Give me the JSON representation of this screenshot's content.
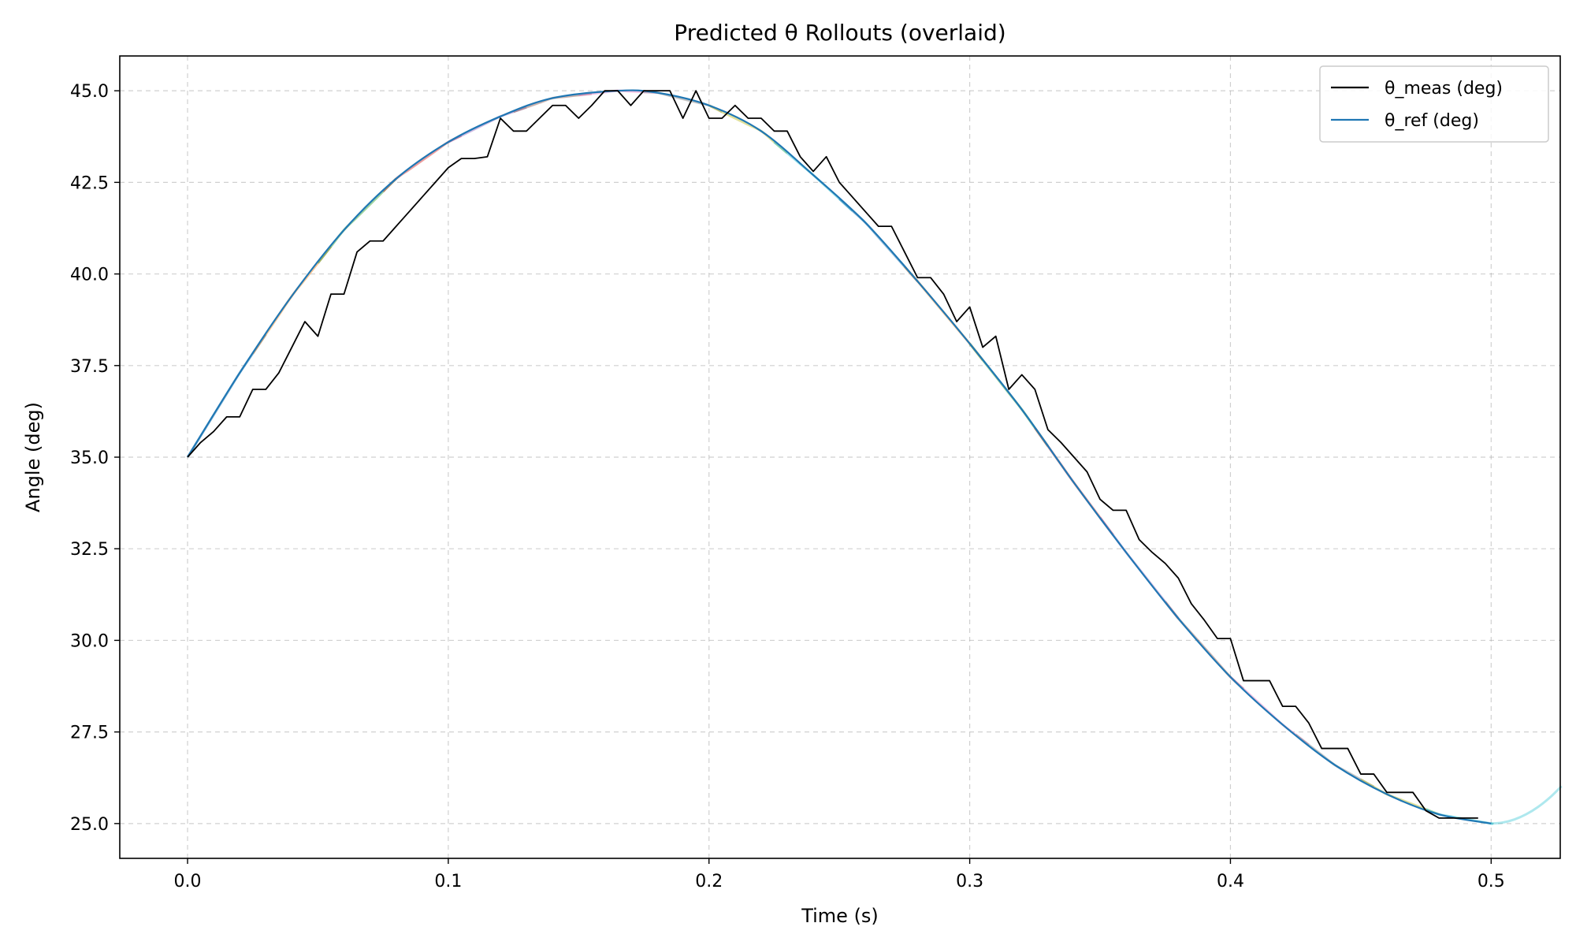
{
  "chart_data": {
    "type": "line",
    "title": "Predicted θ Rollouts (overlaid)",
    "xlabel": "Time (s)",
    "ylabel": "Angle (deg)",
    "xlim": [
      -0.026,
      0.5265
    ],
    "ylim": [
      24.05,
      45.95
    ],
    "xticks": [
      0.0,
      0.1,
      0.2,
      0.3,
      0.4,
      0.5
    ],
    "xtick_labels": [
      "0.0",
      "0.1",
      "0.2",
      "0.3",
      "0.4",
      "0.5"
    ],
    "yticks": [
      25.0,
      27.5,
      30.0,
      32.5,
      35.0,
      37.5,
      40.0,
      42.5,
      45.0
    ],
    "ytick_labels": [
      "25.0",
      "27.5",
      "30.0",
      "32.5",
      "35.0",
      "37.5",
      "40.0",
      "42.5",
      "45.0"
    ],
    "grid": true,
    "legend_position": "top-right",
    "legend": [
      {
        "label": "θ_meas (deg)",
        "color": "#000000"
      },
      {
        "label": "θ_ref (deg)",
        "color": "#1f77b4"
      }
    ],
    "reference_curve": {
      "description_from_chart": "θ_ref",
      "x": [
        0.0,
        0.02,
        0.04,
        0.06,
        0.08,
        0.1,
        0.12,
        0.14,
        0.165,
        0.18,
        0.2,
        0.22,
        0.24,
        0.26,
        0.28,
        0.3,
        0.32,
        0.34,
        0.36,
        0.38,
        0.4,
        0.42,
        0.44,
        0.46,
        0.48,
        0.5
      ],
      "y": [
        35.0,
        37.3,
        39.4,
        41.2,
        42.6,
        43.6,
        44.3,
        44.8,
        45.0,
        44.95,
        44.6,
        43.9,
        42.7,
        41.4,
        39.8,
        38.1,
        36.3,
        34.3,
        32.4,
        30.6,
        29.0,
        27.7,
        26.6,
        25.8,
        25.25,
        25.0
      ]
    },
    "series": [
      {
        "name": "θ_meas (deg)",
        "color": "#000000",
        "x": [
          0.0,
          0.005,
          0.01,
          0.015,
          0.02,
          0.025,
          0.03,
          0.035,
          0.04,
          0.045,
          0.05,
          0.055,
          0.06,
          0.065,
          0.07,
          0.075,
          0.08,
          0.085,
          0.09,
          0.095,
          0.1,
          0.105,
          0.11,
          0.115,
          0.12,
          0.125,
          0.13,
          0.135,
          0.14,
          0.145,
          0.15,
          0.155,
          0.16,
          0.165,
          0.17,
          0.175,
          0.18,
          0.185,
          0.19,
          0.195,
          0.2,
          0.205,
          0.21,
          0.215,
          0.22,
          0.225,
          0.23,
          0.235,
          0.24,
          0.245,
          0.25,
          0.255,
          0.26,
          0.265,
          0.27,
          0.275,
          0.28,
          0.285,
          0.29,
          0.295,
          0.3,
          0.305,
          0.31,
          0.315,
          0.32,
          0.325,
          0.33,
          0.335,
          0.34,
          0.345,
          0.35,
          0.355,
          0.36,
          0.365,
          0.37,
          0.375,
          0.38,
          0.385,
          0.39,
          0.395,
          0.4,
          0.405,
          0.41,
          0.415,
          0.42,
          0.425,
          0.43,
          0.435,
          0.44,
          0.445,
          0.45,
          0.455,
          0.46,
          0.465,
          0.47,
          0.475,
          0.48,
          0.485,
          0.49,
          0.495
        ],
        "y": [
          35.0,
          35.4,
          35.7,
          36.1,
          36.1,
          36.85,
          36.85,
          37.3,
          38.0,
          38.7,
          38.3,
          39.45,
          39.45,
          40.6,
          40.9,
          40.9,
          41.3,
          41.7,
          42.1,
          42.5,
          42.9,
          43.15,
          43.15,
          43.2,
          44.25,
          43.9,
          43.9,
          44.25,
          44.6,
          44.6,
          44.25,
          44.6,
          45.0,
          45.0,
          44.6,
          45.0,
          45.0,
          45.0,
          44.25,
          45.0,
          44.25,
          44.25,
          44.6,
          44.25,
          44.25,
          43.9,
          43.9,
          43.2,
          42.8,
          43.2,
          42.5,
          42.1,
          41.7,
          41.3,
          41.3,
          40.6,
          39.9,
          39.9,
          39.45,
          38.7,
          39.1,
          38.0,
          38.3,
          36.85,
          37.25,
          36.85,
          35.75,
          35.4,
          35.0,
          34.6,
          33.85,
          33.55,
          33.55,
          32.75,
          32.4,
          32.1,
          31.7,
          31.0,
          30.55,
          30.05,
          30.05,
          28.9,
          28.9,
          28.9,
          28.2,
          28.2,
          27.75,
          27.05,
          27.05,
          27.05,
          26.35,
          26.35,
          25.85,
          25.85,
          25.85,
          25.35,
          25.15,
          25.15,
          25.15,
          25.15
        ]
      }
    ],
    "rollout_colors": [
      "#1f77b4",
      "#ff7f0e",
      "#2ca02c",
      "#d62728",
      "#9467bd",
      "#8c564b",
      "#e377c2",
      "#7f7f7f",
      "#bcbd22",
      "#17becf"
    ]
  }
}
